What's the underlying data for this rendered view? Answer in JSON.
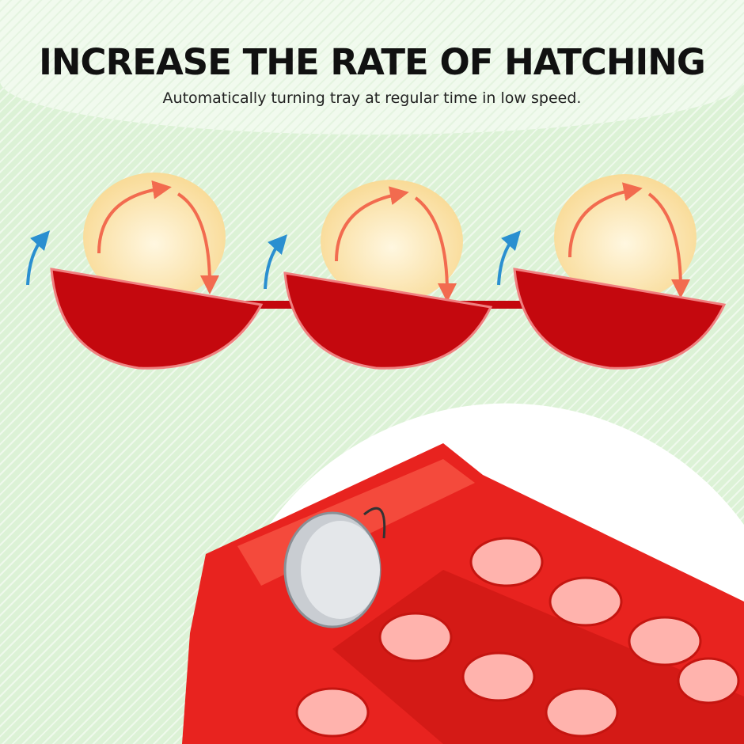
{
  "header": {
    "title": "INCREASE THE RATE OF HATCHING",
    "subtitle": "Automatically turning tray at regular time in low speed."
  },
  "colors": {
    "bowl": "#c4080e",
    "egg": "#fbe7b0",
    "arrow": "#f26b4f",
    "tilt_arrow": "#2a8fd0",
    "tray": "#e8231f"
  },
  "illustration": {
    "egg_count": 3
  },
  "photo": {
    "subject": "red egg turning tray with motor"
  }
}
